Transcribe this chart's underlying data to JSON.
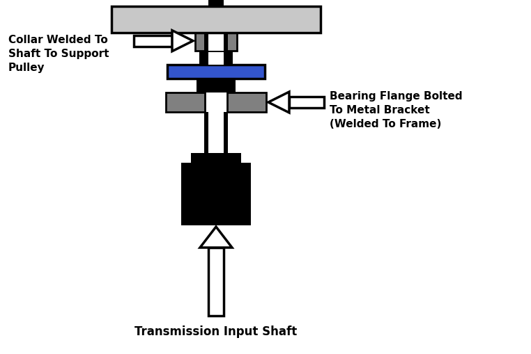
{
  "bg_color": "#ffffff",
  "shaft_color": "#ffffff",
  "shaft_outline": "#000000",
  "pulley_color": "#c8c8c8",
  "pulley_outline": "#000000",
  "collar_color": "#808080",
  "collar_outline": "#000000",
  "bearing_blue_color": "#3355cc",
  "bearing_blue_outline": "#000000",
  "bearing_flange_color": "#808080",
  "bearing_flange_outline": "#000000",
  "black_block_color": "#000000",
  "arrow_fill": "#ffffff",
  "arrow_outline": "#000000",
  "label_collar": "Collar Welded To\nShaft To Support\nPulley",
  "label_bearing": "Bearing Flange Bolted\nTo Metal Bracket\n(Welded To Frame)",
  "label_shaft": "Transmission Input Shaft",
  "font_size_labels": 11,
  "font_size_shaft": 12,
  "font_weight": "bold"
}
